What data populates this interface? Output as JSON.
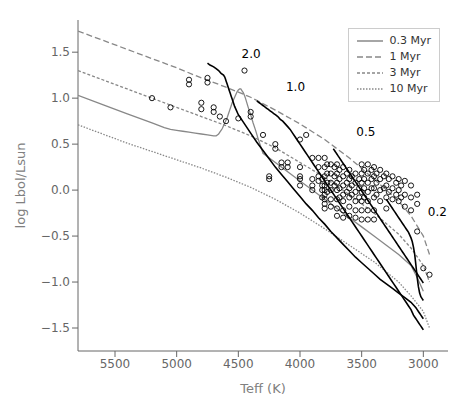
{
  "chart_data": {
    "type": "scatter",
    "xlabel": "Teff (K)",
    "ylabel": "log Lbol/Lsun",
    "xlim": [
      5800,
      2800
    ],
    "ylim": [
      -1.75,
      1.85
    ],
    "xticks": [
      5500,
      5000,
      4500,
      4000,
      3500,
      3000
    ],
    "yticks": [
      {
        "value": -1.5,
        "label": "−1.5"
      },
      {
        "value": -1.0,
        "label": "−1.0"
      },
      {
        "value": -0.5,
        "label": "−0.5"
      },
      {
        "value": 0.0,
        "label": "0.0"
      },
      0.5,
      {
        "value": 1.0,
        "label": "1.0"
      },
      1.5
    ],
    "grid": false,
    "legend": "upper right",
    "series": [
      {
        "name": "0.3 Myr",
        "type": "line",
        "color": "#888888",
        "line_style": "solid",
        "x": [
          5800,
          5600,
          5400,
          5200,
          5100,
          5050,
          5000,
          4950,
          4900,
          4850,
          4800,
          4750,
          4700,
          4680,
          4670,
          4660,
          4650,
          4640,
          4630,
          4620,
          4610,
          4600,
          4590,
          4580,
          4570,
          4560,
          4550,
          4540,
          4530,
          4520,
          4510,
          4500,
          4490,
          4480,
          4470,
          4460,
          4450,
          4440,
          4420,
          4400,
          4380,
          4360,
          4340,
          4320,
          4300,
          4200,
          4100,
          4000,
          3900,
          3800,
          3700,
          3600,
          3500,
          3400,
          3300,
          3200,
          3100,
          3050,
          3000
        ],
        "values": [
          1.03,
          0.93,
          0.83,
          0.73,
          0.68,
          0.66,
          0.65,
          0.64,
          0.63,
          0.62,
          0.61,
          0.6,
          0.59,
          0.59,
          0.6,
          0.61,
          0.63,
          0.65,
          0.67,
          0.7,
          0.73,
          0.76,
          0.79,
          0.83,
          0.87,
          0.91,
          0.95,
          0.98,
          1.01,
          1.04,
          1.07,
          1.09,
          1.1,
          1.1,
          1.08,
          1.06,
          1.03,
          0.99,
          0.9,
          0.82,
          0.73,
          0.65,
          0.56,
          0.48,
          0.4,
          0.3,
          0.2,
          0.1,
          0.0,
          -0.1,
          -0.2,
          -0.3,
          -0.4,
          -0.5,
          -0.6,
          -0.7,
          -0.82,
          -0.95,
          -1.1
        ]
      },
      {
        "name": "1 Myr",
        "type": "line",
        "color": "#888888",
        "line_style": "long-dash",
        "x": [
          5800,
          5600,
          5400,
          5200,
          5000,
          4800,
          4600,
          4400,
          4200,
          4000,
          3800,
          3600,
          3400,
          3200,
          3100,
          3000,
          2950
        ],
        "values": [
          1.73,
          1.63,
          1.53,
          1.43,
          1.33,
          1.22,
          1.12,
          1.01,
          0.87,
          0.72,
          0.55,
          0.35,
          0.12,
          -0.12,
          -0.28,
          -0.5,
          -0.7
        ]
      },
      {
        "name": "3 Myr",
        "type": "line",
        "color": "#888888",
        "line_style": "short-dash",
        "x": [
          5800,
          5600,
          5400,
          5200,
          5000,
          4800,
          4600,
          4400,
          4200,
          4000,
          3800,
          3600,
          3400,
          3200,
          3100,
          3000,
          2950
        ],
        "values": [
          1.3,
          1.2,
          1.1,
          1.0,
          0.9,
          0.8,
          0.7,
          0.59,
          0.46,
          0.3,
          0.14,
          -0.05,
          -0.25,
          -0.48,
          -0.63,
          -0.82,
          -1.0
        ]
      },
      {
        "name": "10 Myr",
        "type": "line",
        "color": "#888888",
        "line_style": "dotted",
        "x": [
          5800,
          5600,
          5400,
          5200,
          5000,
          4800,
          4600,
          4400,
          4200,
          4000,
          3800,
          3600,
          3400,
          3200,
          3100,
          3000,
          2950
        ],
        "values": [
          0.71,
          0.61,
          0.51,
          0.42,
          0.33,
          0.24,
          0.14,
          0.03,
          -0.1,
          -0.25,
          -0.42,
          -0.6,
          -0.78,
          -1.0,
          -1.15,
          -1.32,
          -1.5
        ]
      },
      {
        "type": "line",
        "color": "#000000",
        "line_style": "solid",
        "x": [
          4750,
          4730,
          4700,
          4680,
          4660,
          4640,
          4620,
          4610,
          4605,
          4600,
          4595,
          4590,
          4585,
          4580,
          4575,
          4570,
          4565,
          4560,
          4555,
          4550,
          4540,
          4530,
          4500,
          4450,
          4400,
          4350,
          4300,
          4250,
          4200,
          4150,
          4100,
          4050,
          4000,
          3950,
          3900,
          3850,
          3800,
          3750,
          3700,
          3650,
          3600,
          3550,
          3500,
          3450,
          3400,
          3350,
          3300,
          3250,
          3200,
          3150,
          3100,
          3080,
          3060,
          3050,
          3040,
          3030,
          3020,
          3010,
          3000
        ],
        "values": [
          1.38,
          1.36,
          1.34,
          1.32,
          1.3,
          1.27,
          1.25,
          1.23,
          1.21,
          1.19,
          1.17,
          1.15,
          1.13,
          1.11,
          1.09,
          1.07,
          1.05,
          1.03,
          1.01,
          0.99,
          0.95,
          0.91,
          0.82,
          0.72,
          0.62,
          0.52,
          0.43,
          0.34,
          0.25,
          0.17,
          0.09,
          0.01,
          -0.07,
          -0.15,
          -0.22,
          -0.3,
          -0.37,
          -0.45,
          -0.52,
          -0.59,
          -0.66,
          -0.73,
          -0.79,
          -0.85,
          -0.91,
          -0.97,
          -1.02,
          -1.07,
          -1.12,
          -1.17,
          -1.22,
          -1.25,
          -1.28,
          -1.3,
          -1.32,
          -1.34,
          -1.36,
          -1.38,
          -1.4
        ]
      },
      {
        "type": "line",
        "color": "#000000",
        "line_style": "solid",
        "x": [
          4350,
          4340,
          4330,
          4320,
          4310,
          4300,
          4290,
          4280,
          4270,
          4260,
          4250,
          4240,
          4230,
          4220,
          4210,
          4200,
          4180,
          4160,
          4140,
          4120,
          4100,
          4080,
          4060,
          4040,
          4020,
          4000,
          3980,
          3960,
          3940,
          3920,
          3900,
          3880,
          3860,
          3840,
          3820,
          3800,
          3780,
          3760,
          3740,
          3720,
          3700,
          3680,
          3660,
          3640,
          3620,
          3600,
          3580,
          3560,
          3540,
          3520,
          3500,
          3480,
          3460,
          3440,
          3420,
          3400,
          3380,
          3360,
          3340,
          3320,
          3300,
          3280,
          3260,
          3240,
          3220,
          3200,
          3180,
          3160,
          3140,
          3120,
          3100,
          3090,
          3080,
          3070,
          3060,
          3050,
          3040,
          3030,
          3020,
          3010,
          3000
        ],
        "values": [
          0.97,
          0.96,
          0.95,
          0.94,
          0.93,
          0.92,
          0.91,
          0.9,
          0.89,
          0.88,
          0.87,
          0.86,
          0.85,
          0.84,
          0.83,
          0.82,
          0.8,
          0.77,
          0.75,
          0.72,
          0.69,
          0.66,
          0.62,
          0.58,
          0.54,
          0.5,
          0.46,
          0.42,
          0.38,
          0.34,
          0.3,
          0.26,
          0.22,
          0.18,
          0.14,
          0.1,
          0.06,
          0.02,
          -0.02,
          -0.06,
          -0.1,
          -0.14,
          -0.18,
          -0.22,
          -0.26,
          -0.3,
          -0.34,
          -0.38,
          -0.42,
          -0.46,
          -0.5,
          -0.54,
          -0.58,
          -0.62,
          -0.66,
          -0.7,
          -0.74,
          -0.78,
          -0.82,
          -0.86,
          -0.9,
          -0.94,
          -0.98,
          -1.02,
          -1.06,
          -1.1,
          -1.14,
          -1.18,
          -1.22,
          -1.26,
          -1.3,
          -1.33,
          -1.36,
          -1.38,
          -1.4,
          -1.42,
          -1.44,
          -1.46,
          -1.48,
          -1.5,
          -1.52
        ]
      },
      {
        "type": "line",
        "color": "#000000",
        "line_style": "solid",
        "x": [
          3730,
          3725,
          3720,
          3715,
          3710,
          3705,
          3700,
          3695,
          3690,
          3680,
          3670,
          3660,
          3650,
          3640,
          3630,
          3620,
          3610,
          3600,
          3590,
          3580,
          3570,
          3560,
          3550,
          3540,
          3530,
          3520,
          3510,
          3500,
          3490,
          3480,
          3470,
          3460,
          3450,
          3440,
          3430,
          3420,
          3410,
          3400,
          3390,
          3380,
          3370,
          3360,
          3350,
          3340,
          3330,
          3320,
          3310,
          3300,
          3290,
          3280,
          3270,
          3260,
          3250,
          3240,
          3230,
          3220,
          3210,
          3200,
          3190,
          3180,
          3170,
          3160,
          3150,
          3140,
          3130,
          3120,
          3110,
          3100,
          3090,
          3080,
          3070,
          3060,
          3050,
          3040,
          3030,
          3020,
          3010,
          3000
        ],
        "values": [
          0.45,
          0.44,
          0.43,
          0.42,
          0.41,
          0.4,
          0.39,
          0.38,
          0.37,
          0.35,
          0.33,
          0.31,
          0.29,
          0.27,
          0.25,
          0.23,
          0.21,
          0.19,
          0.17,
          0.15,
          0.13,
          0.11,
          0.09,
          0.07,
          0.05,
          0.03,
          0.01,
          -0.01,
          -0.03,
          -0.05,
          -0.07,
          -0.09,
          -0.11,
          -0.13,
          -0.15,
          -0.17,
          -0.19,
          -0.21,
          -0.23,
          -0.25,
          -0.27,
          -0.29,
          -0.31,
          -0.33,
          -0.35,
          -0.37,
          -0.39,
          -0.41,
          -0.43,
          -0.45,
          -0.47,
          -0.49,
          -0.51,
          -0.53,
          -0.55,
          -0.57,
          -0.59,
          -0.61,
          -0.63,
          -0.65,
          -0.67,
          -0.69,
          -0.71,
          -0.73,
          -0.75,
          -0.77,
          -0.79,
          -0.81,
          -0.83,
          -0.85,
          -0.87,
          -0.89,
          -0.91,
          -0.93,
          -0.95,
          -0.97,
          -0.99,
          -1.01
        ]
      },
      {
        "type": "line",
        "color": "#000000",
        "line_style": "solid",
        "x": [
          3300,
          3295,
          3290,
          3285,
          3280,
          3275,
          3270,
          3265,
          3260,
          3255,
          3250,
          3240,
          3230,
          3220,
          3210,
          3200,
          3190,
          3180,
          3170,
          3160,
          3150,
          3140,
          3130,
          3120,
          3110,
          3100,
          3090,
          3080,
          3070,
          3060,
          3050,
          3040,
          3030,
          3020,
          3010,
          3000
        ],
        "values": [
          -0.1,
          -0.11,
          -0.12,
          -0.13,
          -0.14,
          -0.15,
          -0.16,
          -0.17,
          -0.18,
          -0.19,
          -0.2,
          -0.22,
          -0.24,
          -0.26,
          -0.28,
          -0.3,
          -0.32,
          -0.34,
          -0.36,
          -0.38,
          -0.4,
          -0.42,
          -0.44,
          -0.46,
          -0.49,
          -0.52,
          -0.56,
          -0.62,
          -0.7,
          -0.82,
          -0.95,
          -1.05,
          -1.12,
          -1.16,
          -1.18,
          -1.2
        ]
      },
      {
        "type": "scatter",
        "color": "#000000",
        "marker": "open_circle",
        "x": [
          5200,
          5050,
          4900,
          4900,
          4800,
          4800,
          4750,
          4750,
          4700,
          4700,
          4650,
          4600,
          4500,
          4450,
          4400,
          4400,
          4300,
          4250,
          4250,
          4200,
          4200,
          4150,
          4150,
          4100,
          4100,
          4000,
          4000,
          4000,
          4000,
          4000,
          3950,
          3900,
          3900,
          3900,
          3900,
          3850,
          3850,
          3850,
          3850,
          3820,
          3820,
          3820,
          3820,
          3800,
          3800,
          3800,
          3800,
          3800,
          3800,
          3800,
          3800,
          3800,
          3780,
          3780,
          3780,
          3780,
          3750,
          3750,
          3750,
          3750,
          3750,
          3750,
          3720,
          3720,
          3720,
          3700,
          3700,
          3700,
          3700,
          3700,
          3700,
          3700,
          3680,
          3680,
          3680,
          3680,
          3650,
          3650,
          3650,
          3650,
          3650,
          3650,
          3650,
          3620,
          3620,
          3620,
          3600,
          3600,
          3600,
          3600,
          3600,
          3600,
          3580,
          3580,
          3580,
          3550,
          3550,
          3550,
          3550,
          3550,
          3550,
          3520,
          3520,
          3520,
          3500,
          3500,
          3500,
          3500,
          3500,
          3500,
          3500,
          3480,
          3480,
          3480,
          3480,
          3450,
          3450,
          3450,
          3450,
          3450,
          3450,
          3450,
          3420,
          3420,
          3420,
          3400,
          3400,
          3400,
          3400,
          3400,
          3400,
          3380,
          3380,
          3380,
          3350,
          3350,
          3350,
          3350,
          3320,
          3320,
          3300,
          3300,
          3300,
          3300,
          3280,
          3280,
          3250,
          3250,
          3250,
          3220,
          3220,
          3200,
          3200,
          3200,
          3180,
          3180,
          3150,
          3150,
          3150,
          3100,
          3100,
          3100,
          3050,
          3050,
          3050,
          3000,
          2950
        ],
        "values": [
          1.0,
          0.9,
          1.2,
          1.15,
          0.95,
          0.88,
          1.22,
          1.17,
          0.9,
          0.85,
          0.8,
          0.75,
          0.78,
          1.3,
          0.85,
          0.8,
          0.6,
          0.15,
          0.12,
          0.5,
          0.45,
          0.3,
          0.25,
          0.3,
          0.25,
          0.55,
          0.25,
          0.15,
          0.12,
          0.05,
          0.6,
          0.35,
          0.12,
          0.05,
          0.0,
          0.35,
          0.25,
          0.15,
          0.1,
          0.12,
          0.05,
          0.0,
          -0.08,
          0.35,
          0.25,
          0.15,
          0.05,
          0.0,
          -0.05,
          -0.1,
          -0.15,
          -0.2,
          0.28,
          0.18,
          0.08,
          -0.02,
          0.28,
          0.18,
          0.08,
          0.0,
          -0.1,
          -0.18,
          0.25,
          0.15,
          0.05,
          0.28,
          0.18,
          0.08,
          0.0,
          -0.1,
          -0.2,
          -0.28,
          0.22,
          0.12,
          0.02,
          -0.08,
          0.25,
          0.15,
          0.05,
          -0.05,
          -0.12,
          -0.22,
          -0.3,
          0.18,
          0.08,
          -0.02,
          0.22,
          0.12,
          0.02,
          -0.08,
          -0.18,
          -0.28,
          0.15,
          0.05,
          -0.05,
          0.18,
          0.08,
          -0.02,
          -0.12,
          -0.22,
          -0.3,
          0.12,
          0.02,
          -0.08,
          0.28,
          0.18,
          0.08,
          -0.02,
          -0.12,
          -0.22,
          -0.32,
          0.22,
          0.12,
          0.02,
          -0.08,
          0.28,
          0.18,
          0.08,
          -0.02,
          -0.12,
          -0.22,
          -0.32,
          0.22,
          0.12,
          0.02,
          0.25,
          0.15,
          0.02,
          -0.08,
          -0.22,
          -0.32,
          0.18,
          0.08,
          -0.05,
          0.22,
          0.12,
          0.0,
          -0.12,
          0.15,
          0.02,
          0.18,
          0.05,
          -0.08,
          -0.2,
          0.12,
          -0.02,
          0.15,
          0.02,
          -0.1,
          0.08,
          -0.05,
          0.12,
          0.0,
          -0.12,
          0.05,
          -0.08,
          0.1,
          -0.05,
          -0.18,
          0.05,
          -0.08,
          -0.22,
          -0.05,
          -0.15,
          -0.45,
          -0.85,
          -0.92
        ]
      }
    ],
    "annotations": [
      {
        "text": "2.0",
        "x": 4490,
        "y": 1.42,
        "color": "#000000"
      },
      {
        "text": "1.0",
        "x": 4130,
        "y": 1.06,
        "color": "#000000"
      },
      {
        "text": "0.5",
        "x": 3560,
        "y": 0.57,
        "color": "#000000"
      },
      {
        "text": "0.2",
        "x": 2980,
        "y": -0.3,
        "color": "#000000"
      }
    ]
  }
}
